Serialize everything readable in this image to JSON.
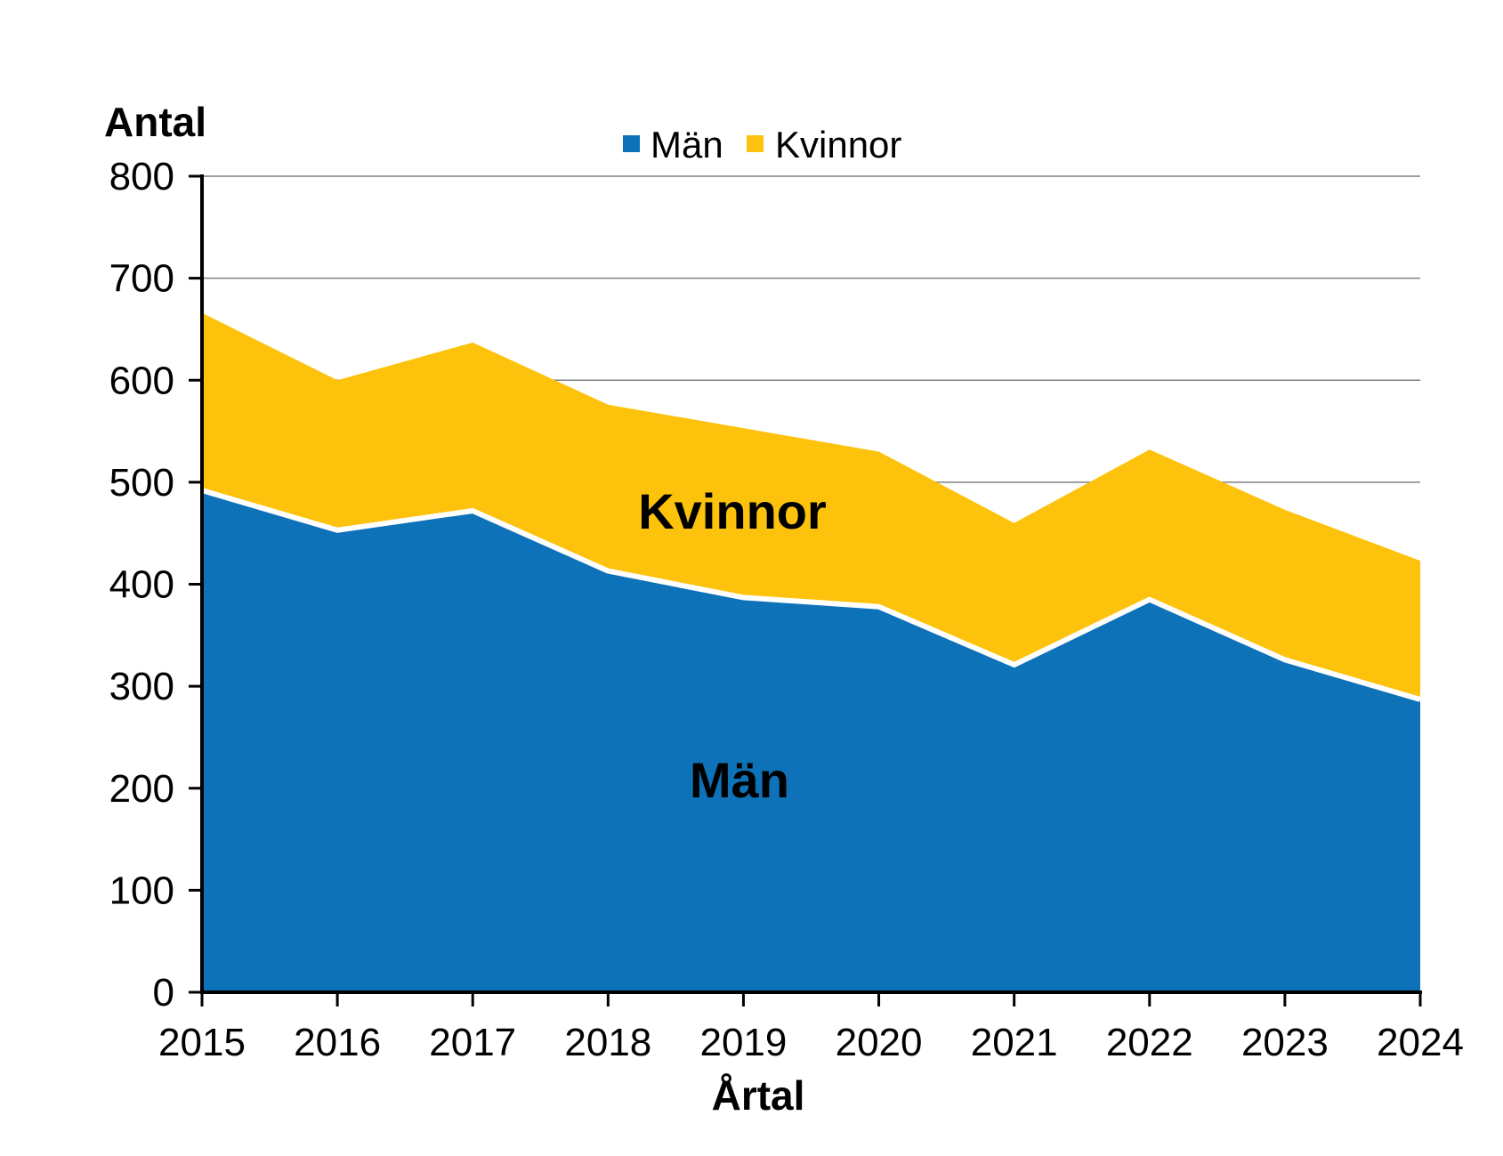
{
  "chart_data": {
    "type": "area",
    "stacked": true,
    "y_axis_title": "Antal",
    "x_axis_title": "Årtal",
    "categories": [
      "2015",
      "2016",
      "2017",
      "2018",
      "2019",
      "2020",
      "2021",
      "2022",
      "2023",
      "2024"
    ],
    "series": [
      {
        "name": "Män",
        "color": "#0e72b9",
        "values": [
          492,
          453,
          472,
          413,
          387,
          378,
          321,
          385,
          326,
          287
        ]
      },
      {
        "name": "Kvinnor",
        "color": "#fdc20b",
        "values": [
          174,
          147,
          165,
          163,
          166,
          152,
          139,
          147,
          147,
          136
        ]
      }
    ],
    "stacked_totals": [
      666,
      600,
      637,
      576,
      553,
      530,
      460,
      532,
      473,
      423
    ],
    "ylim": [
      0,
      800
    ],
    "ytick_step": 100,
    "yticks": [
      "0",
      "100",
      "200",
      "300",
      "400",
      "500",
      "600",
      "700",
      "800"
    ],
    "grid": "horizontal",
    "gridline_color": "#808080",
    "axis_color": "#000000",
    "divider_color": "#ffffff",
    "legend_position": "top-center",
    "area_labels": [
      {
        "text": "Män",
        "color": "#ffffff"
      },
      {
        "text": "Kvinnor",
        "color": "#000000"
      }
    ]
  }
}
